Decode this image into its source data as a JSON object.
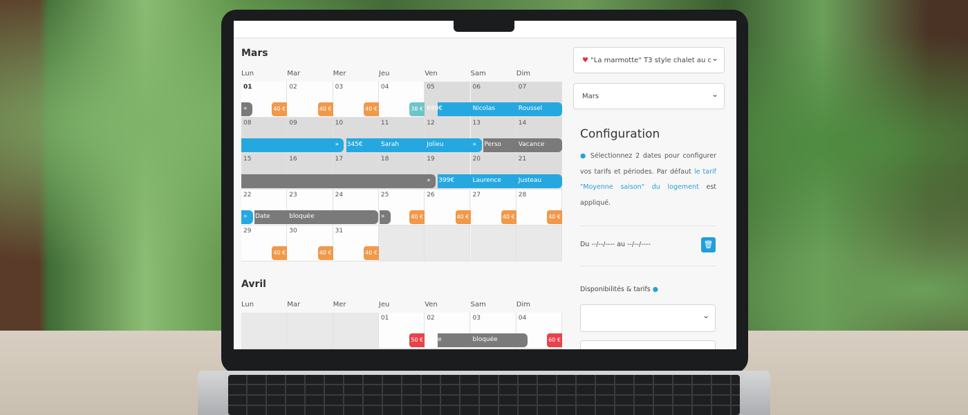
{
  "weekdays": [
    "Lun",
    "Mar",
    "Mer",
    "Jeu",
    "Ven",
    "Sam",
    "Dim"
  ],
  "march": {
    "title": "Mars",
    "price_color": "#f0994a",
    "days": [
      {
        "num": "01",
        "tag": "»",
        "price": "40 €"
      },
      {
        "num": "02",
        "price": "40 €"
      },
      {
        "num": "03",
        "price": "40 €"
      },
      {
        "num": "04",
        "price": "38 €",
        "price_color": "#6cc5c8"
      },
      {
        "num": "05",
        "text": "699€"
      },
      {
        "num": "06",
        "text": "Nicolas"
      },
      {
        "num": "07",
        "text": "Roussel"
      },
      {
        "num": "08"
      },
      {
        "num": "09"
      },
      {
        "num": "10",
        "tag": "»",
        "text": "345€"
      },
      {
        "num": "11",
        "text": "Sarah"
      },
      {
        "num": "12",
        "text": "Jolieu"
      },
      {
        "num": "13",
        "tag": "»",
        "text": "Perso"
      },
      {
        "num": "14",
        "text": "Vacance"
      },
      {
        "num": "15"
      },
      {
        "num": "16"
      },
      {
        "num": "17"
      },
      {
        "num": "18"
      },
      {
        "num": "19",
        "tag": "»",
        "text": "399€"
      },
      {
        "num": "20",
        "text": "Laurence"
      },
      {
        "num": "21",
        "text": "Justeau"
      },
      {
        "num": "22",
        "tag": "»",
        "text": "Date"
      },
      {
        "num": "23",
        "text": "bloquée"
      },
      {
        "num": "24"
      },
      {
        "num": "25",
        "tag": "»",
        "price": "40 €"
      },
      {
        "num": "26",
        "price": "40 €"
      },
      {
        "num": "27",
        "price": "40 €"
      },
      {
        "num": "28",
        "price": "40 €"
      },
      {
        "num": "29",
        "price": "40 €"
      },
      {
        "num": "30",
        "price": "40 €"
      },
      {
        "num": "31",
        "price": "40 €"
      }
    ]
  },
  "april": {
    "title": "Avril",
    "price_color": "#e8424a",
    "days": [
      {
        "num": "01",
        "price": "50 €"
      },
      {
        "num": "02",
        "text": "Date"
      },
      {
        "num": "03",
        "text": "bloquée"
      },
      {
        "num": "04",
        "price": "60 €"
      }
    ]
  },
  "sidebar": {
    "property": "\"La marmotte\" T3 style chalet au c",
    "month": "Mars",
    "config_title": "Configuration",
    "config_text": "Sélectionnez 2 dates pour configurer vos tarifs et périodes. Par défaut",
    "config_link": "le tarif \"Moyenne saison\" du logement",
    "config_end": "est appliqué.",
    "range": "Du --/--/---- au --/--/----",
    "availability": "Disponibilités & tarifs"
  }
}
